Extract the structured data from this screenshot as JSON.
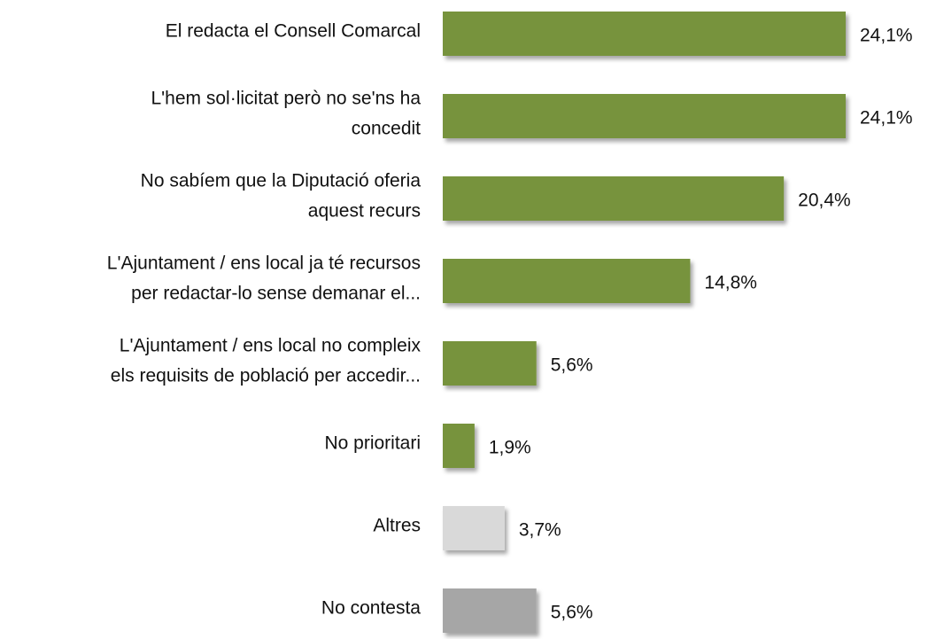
{
  "chart_data": {
    "type": "barh",
    "categories": [
      [
        "El redacta el Consell Comarcal"
      ],
      [
        "L'hem sol·licitat però no se'ns ha",
        "concedit"
      ],
      [
        "No sabíem que la Diputació oferia",
        "aquest recurs"
      ],
      [
        "L'Ajuntament / ens local ja té recursos",
        "per redactar-lo sense demanar el..."
      ],
      [
        "L'Ajuntament / ens local no compleix",
        "els requisits de població per accedir..."
      ],
      [
        "No prioritari"
      ],
      [
        "Altres"
      ],
      [
        "No contesta"
      ]
    ],
    "values": [
      24.1,
      24.1,
      20.4,
      14.8,
      5.6,
      1.9,
      3.7,
      5.6
    ],
    "value_labels": [
      "24,1%",
      "24,1%",
      "20,4%",
      "14,8%",
      "5,6%",
      "1,9%",
      "3,7%",
      "5,6%"
    ],
    "colors": [
      "#77933c",
      "#77933c",
      "#77933c",
      "#77933c",
      "#77933c",
      "#77933c",
      "#d9d9d9",
      "#a6a6a6"
    ]
  }
}
